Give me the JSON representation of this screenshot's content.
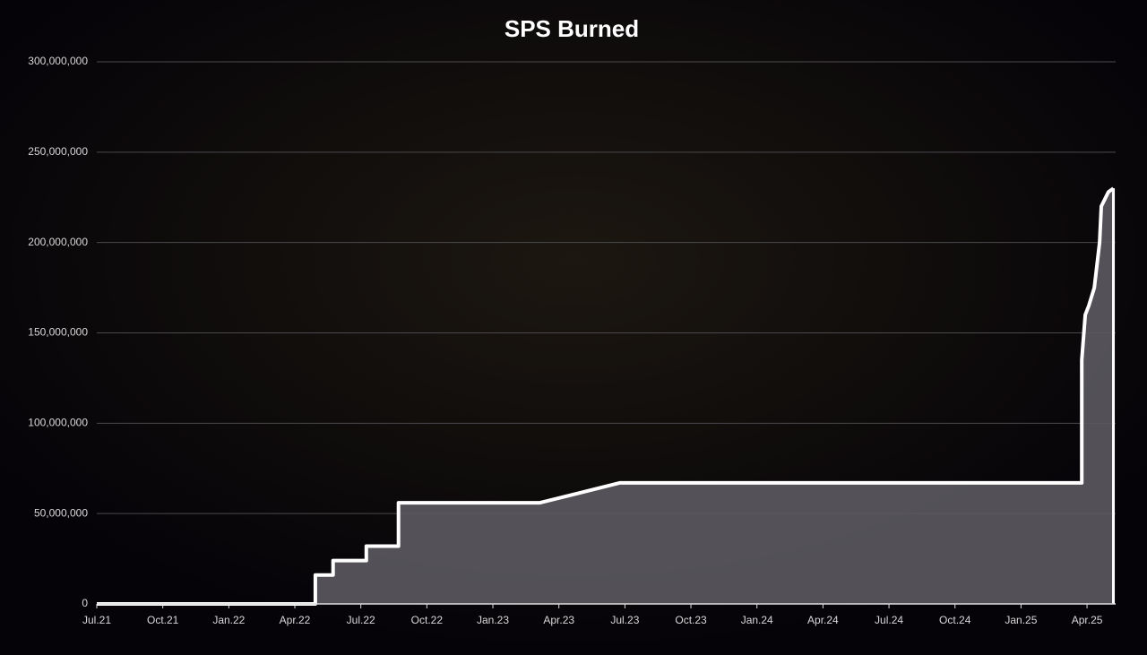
{
  "chart_data": {
    "type": "area",
    "title": "SPS Burned",
    "x": [
      0,
      9.93,
      9.93,
      10.74,
      10.74,
      12.25,
      12.25,
      13.71,
      13.71,
      20.14,
      23.76,
      44.76,
      44.76,
      44.92,
      45.08,
      45.33,
      45.57,
      45.65,
      45.97,
      46.2
    ],
    "values": [
      0,
      0,
      16000000,
      16000000,
      24000000,
      24000000,
      32000000,
      32000000,
      56000000,
      56000000,
      67000000,
      67000000,
      135000000,
      160000000,
      165000000,
      175000000,
      200000000,
      220000000,
      228000000,
      230000000
    ],
    "color": "#ffffff",
    "fill": "#5c5a60",
    "xlim": [
      0,
      46.3
    ],
    "xticks": [
      {
        "value": 0,
        "label": "Jul.21"
      },
      {
        "value": 3,
        "label": "Oct.21"
      },
      {
        "value": 6,
        "label": "Jan.22"
      },
      {
        "value": 9,
        "label": "Apr.22"
      },
      {
        "value": 12,
        "label": "Jul.22"
      },
      {
        "value": 15,
        "label": "Oct.22"
      },
      {
        "value": 18,
        "label": "Jan.23"
      },
      {
        "value": 21,
        "label": "Apr.23"
      },
      {
        "value": 24,
        "label": "Jul.23"
      },
      {
        "value": 27,
        "label": "Oct.23"
      },
      {
        "value": 30,
        "label": "Jan.24"
      },
      {
        "value": 33,
        "label": "Apr.24"
      },
      {
        "value": 36,
        "label": "Jul.24"
      },
      {
        "value": 39,
        "label": "Oct.24"
      },
      {
        "value": 42,
        "label": "Jan.25"
      },
      {
        "value": 45,
        "label": "Apr.25"
      }
    ],
    "ylim": [
      0,
      300000000
    ],
    "yticks": [
      0,
      {
        "value": 50000000,
        "label": "50,000,000"
      },
      {
        "value": 100000000,
        "label": "100,000,000"
      },
      {
        "value": 150000000,
        "label": "150,000,000"
      },
      {
        "value": 200000000,
        "label": "200,000,000"
      },
      {
        "value": 250000000,
        "label": "250,000,000"
      },
      {
        "value": 300000000,
        "label": "300,000,000"
      }
    ],
    "grid": true
  }
}
